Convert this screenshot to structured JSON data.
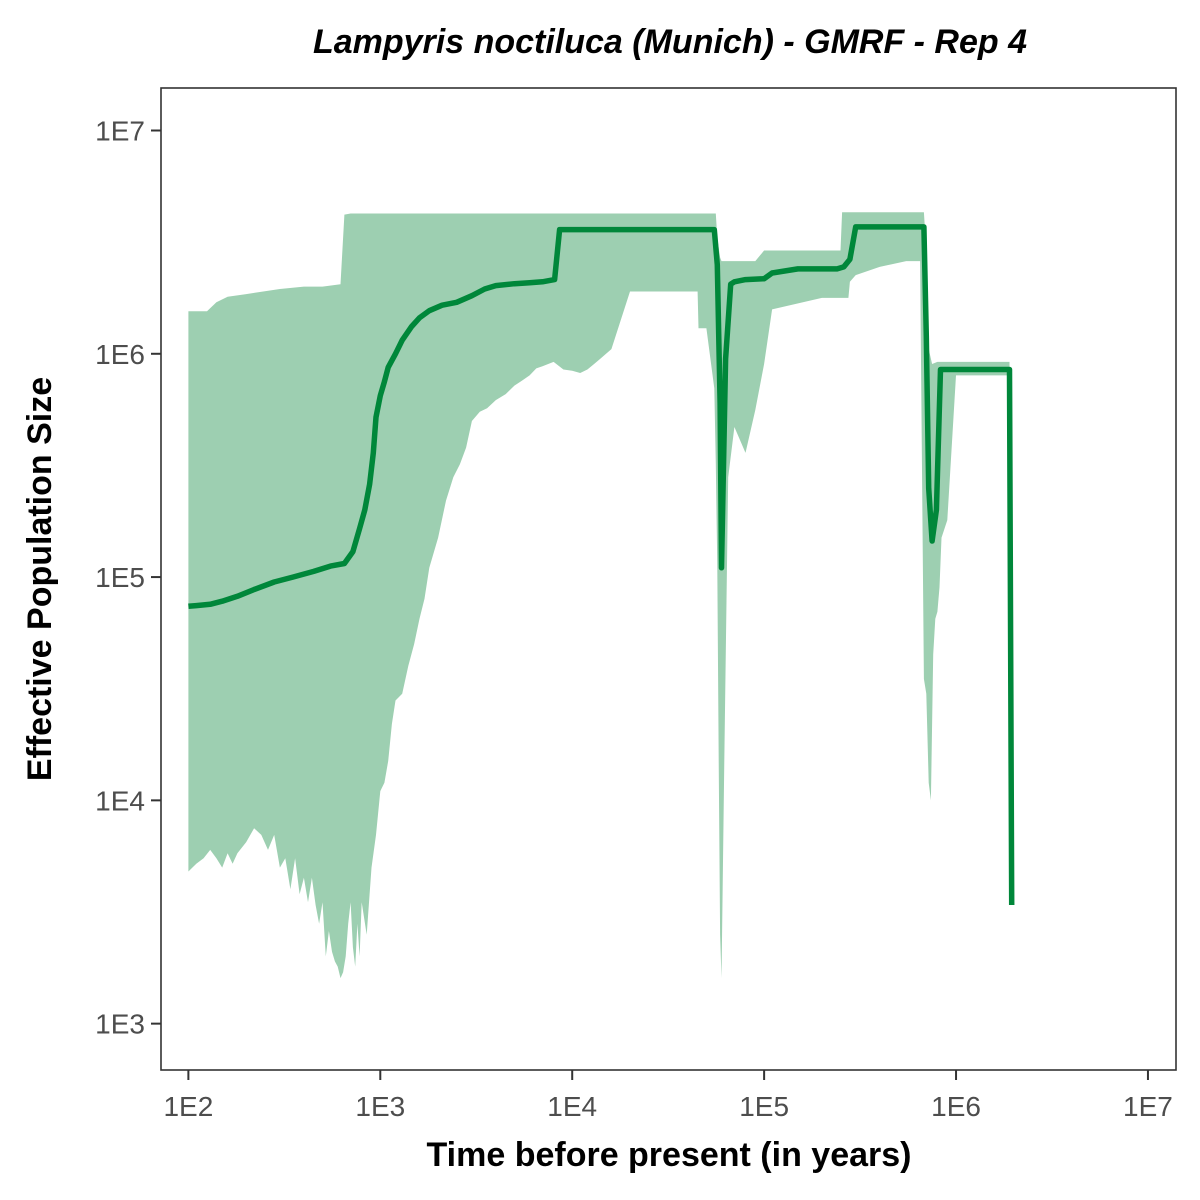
{
  "chart_data": {
    "type": "area",
    "title": "Lampyris noctiluca (Munich) - GMRF - Rep 4",
    "xlabel": "Time before present (in years)",
    "ylabel": "Effective Population Size",
    "x_scale": "log10",
    "y_scale": "log10",
    "xlim": [
      72,
      14000000
    ],
    "ylim": [
      620,
      15500000
    ],
    "x_ticks": [
      {
        "value": 100,
        "label": "1E2"
      },
      {
        "value": 1000,
        "label": "1E3"
      },
      {
        "value": 10000,
        "label": "1E4"
      },
      {
        "value": 100000,
        "label": "1E5"
      },
      {
        "value": 1000000,
        "label": "1E6"
      },
      {
        "value": 10000000,
        "label": "1E7"
      }
    ],
    "y_ticks": [
      {
        "value": 1000,
        "label": "1E3"
      },
      {
        "value": 10000,
        "label": "1E4"
      },
      {
        "value": 100000,
        "label": "1E5"
      },
      {
        "value": 1000000,
        "label": "1E6"
      },
      {
        "value": 10000000,
        "label": "1E7"
      }
    ],
    "colors": {
      "median_line": "#00873a",
      "hpd_band": "#9dcfb1"
    },
    "series": [
      {
        "role": "median",
        "x": [
          100,
          110,
          130,
          150,
          180,
          220,
          280,
          350,
          450,
          550,
          650,
          720,
          780,
          830,
          880,
          920,
          950,
          1000,
          1050,
          1100,
          1200,
          1300,
          1450,
          1600,
          1800,
          2100,
          2500,
          3000,
          3500,
          4000,
          5000,
          6000,
          7000,
          8100,
          8600,
          10000,
          20000,
          40000,
          55000,
          57000,
          59000,
          60000,
          63000,
          67000,
          70000,
          80000,
          100000,
          110000,
          150000,
          200000,
          240000,
          260000,
          280000,
          300000,
          400000,
          600000,
          680000,
          700000,
          720000,
          750000,
          790000,
          830000,
          900000,
          1200000,
          1600000,
          1900000,
          1950000
        ],
        "y": [
          74000,
          74500,
          75500,
          78000,
          82000,
          88000,
          95000,
          100000,
          106000,
          112000,
          115000,
          130000,
          165000,
          200000,
          260000,
          360000,
          520000,
          650000,
          750000,
          870000,
          1000000,
          1150000,
          1320000,
          1450000,
          1560000,
          1650000,
          1700000,
          1820000,
          1950000,
          2020000,
          2060000,
          2080000,
          2100000,
          2150000,
          3600000,
          3600000,
          3600000,
          3600000,
          3600000,
          2500000,
          600000,
          110000,
          950000,
          2050000,
          2100000,
          2150000,
          2170000,
          2300000,
          2400000,
          2400000,
          2400000,
          2450000,
          2650000,
          3700000,
          3700000,
          3700000,
          3700000,
          1200000,
          250000,
          145000,
          200000,
          850000,
          850000,
          850000,
          850000,
          850000,
          3400
        ]
      },
      {
        "role": "upper_95_hpd",
        "x": [
          100,
          125,
          140,
          160,
          200,
          300,
          400,
          500,
          620,
          650,
          700,
          1000,
          5000,
          10000,
          30000,
          56000,
          57000,
          59000,
          60000,
          65000,
          90000,
          100000,
          250000,
          255000,
          270000,
          300000,
          600000,
          680000,
          700000,
          720000,
          750000,
          800000,
          1000000,
          1500000,
          1900000
        ],
        "y": [
          1550000,
          1550000,
          1700000,
          1800000,
          1850000,
          1950000,
          2000000,
          2000000,
          2050000,
          4200000,
          4250000,
          4250000,
          4250000,
          4250000,
          4250000,
          4250000,
          3300000,
          2700000,
          2600000,
          2600000,
          2600000,
          2900000,
          2900000,
          4300000,
          4300000,
          4300000,
          4300000,
          4300000,
          2900000,
          1050000,
          900000,
          920000,
          920000,
          920000,
          920000
        ]
      },
      {
        "role": "lower_95_hpd",
        "x": [
          100,
          110,
          120,
          130,
          140,
          150,
          160,
          170,
          180,
          200,
          220,
          240,
          260,
          280,
          300,
          320,
          340,
          360,
          380,
          400,
          420,
          440,
          460,
          480,
          500,
          520,
          540,
          560,
          580,
          600,
          620,
          640,
          660,
          680,
          700,
          720,
          740,
          760,
          780,
          800,
          850,
          900,
          950,
          1000,
          1050,
          1100,
          1150,
          1200,
          1300,
          1400,
          1500,
          1600,
          1700,
          1800,
          2000,
          2200,
          2400,
          2600,
          2800,
          3000,
          3300,
          3600,
          4000,
          4500,
          5000,
          5500,
          6000,
          6500,
          7000,
          8000,
          9000,
          10000,
          11000,
          12000,
          13000,
          14000,
          16000,
          20000,
          30000,
          40000,
          45000,
          45500,
          50000,
          55000,
          56000,
          57000,
          58000,
          59000,
          60000,
          62000,
          65000,
          70000,
          80000,
          90000,
          100000,
          110000,
          200000,
          250000,
          275000,
          280000,
          300000,
          400000,
          550000,
          650000,
          680000,
          700000,
          720000,
          740000,
          760000,
          780000,
          800000,
          820000,
          840000,
          900000,
          1000000,
          1200000,
          1500000,
          1900000
        ],
        "y": [
          4800,
          5200,
          5500,
          6000,
          5500,
          5000,
          5800,
          5200,
          5800,
          6500,
          7500,
          7000,
          6000,
          7000,
          5000,
          5500,
          4000,
          5500,
          3800,
          4500,
          3500,
          4500,
          3400,
          2800,
          3500,
          2000,
          2600,
          2100,
          1900,
          1800,
          1600,
          1700,
          2000,
          2800,
          3500,
          2200,
          1800,
          2800,
          2000,
          3500,
          2500,
          5000,
          7000,
          11000,
          12000,
          15000,
          22000,
          28000,
          30000,
          40000,
          50000,
          65000,
          80000,
          110000,
          150000,
          220000,
          280000,
          320000,
          380000,
          500000,
          550000,
          570000,
          620000,
          660000,
          720000,
          760000,
          800000,
          860000,
          880000,
          920000,
          850000,
          840000,
          820000,
          850000,
          900000,
          950000,
          1050000,
          1900000,
          1900000,
          1900000,
          1900000,
          1300000,
          1300000,
          700000,
          320000,
          110000,
          15000,
          2500,
          1600,
          15000,
          280000,
          470000,
          360000,
          560000,
          900000,
          1580000,
          1780000,
          1780000,
          1780000,
          2100000,
          2250000,
          2450000,
          2600000,
          2600000,
          35000,
          30000,
          12000,
          10000,
          45000,
          65000,
          70000,
          90000,
          150000,
          180000,
          800000,
          800000,
          800000,
          800000
        ]
      }
    ]
  }
}
